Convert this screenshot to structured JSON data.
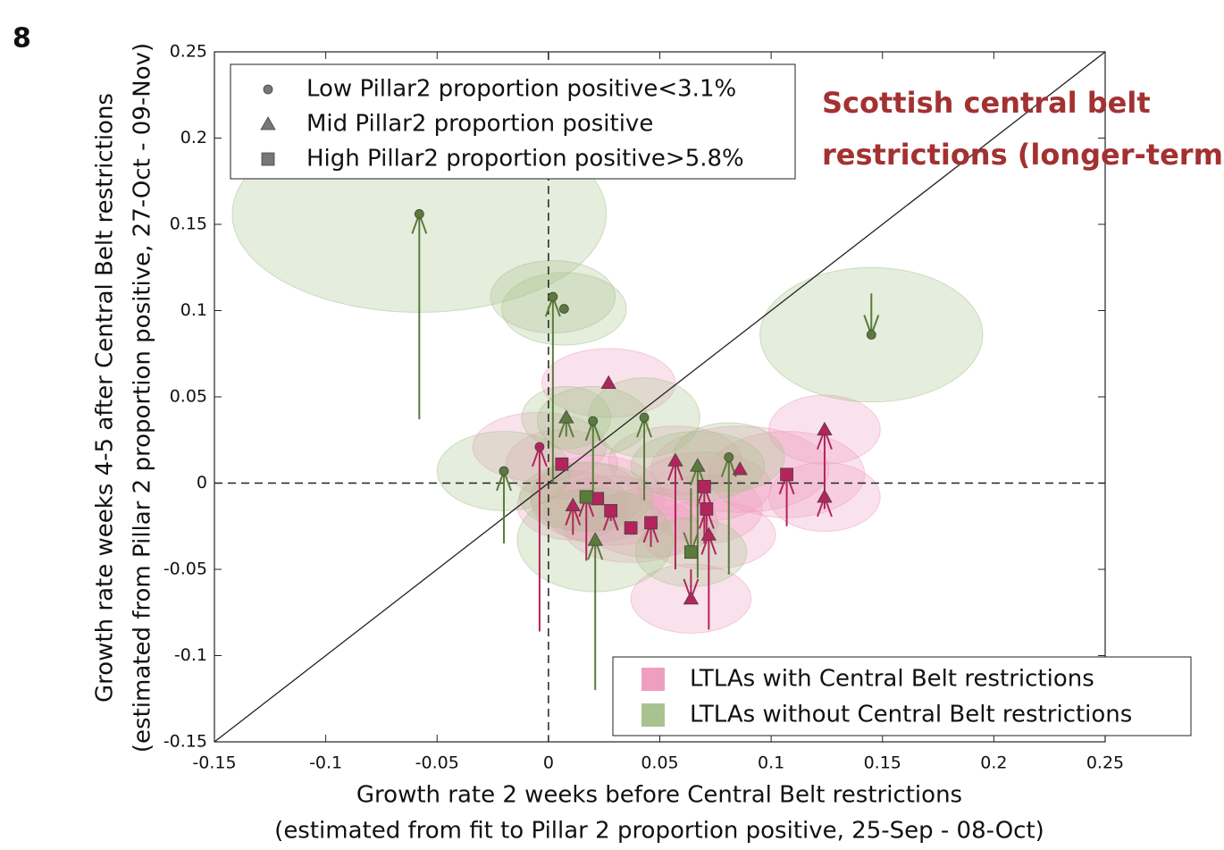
{
  "panel_label": "8",
  "chart_data": {
    "type": "scatter",
    "annotation": [
      "Scottish central belt",
      "restrictions (longer-term)"
    ],
    "x_label": [
      "Growth rate 2 weeks before Central Belt restrictions",
      "(estimated from fit to Pillar 2 proportion positive, 25-Sep - 08-Oct)"
    ],
    "y_label": [
      "Growth rate weeks 4-5 after Central Belt restrictions",
      "(estimated from Pillar 2 proportion positive, 27-Oct - 09-Nov)"
    ],
    "xlim": [
      -0.15,
      0.25
    ],
    "ylim": [
      -0.15,
      0.25
    ],
    "xticks": [
      -0.15,
      -0.1,
      -0.05,
      0,
      0.05,
      0.1,
      0.15,
      0.2,
      0.25
    ],
    "yticks": [
      -0.15,
      -0.1,
      -0.05,
      0,
      0.05,
      0.1,
      0.15,
      0.2,
      0.25
    ],
    "identity_line": true,
    "zero_lines": true,
    "markers": [
      {
        "name": "Low Pillar2 proportion positive<3.1%",
        "shape": "circle"
      },
      {
        "name": "Mid Pillar2 proportion positive",
        "shape": "triangle"
      },
      {
        "name": "High Pillar2 proportion positive>5.8%",
        "shape": "square"
      }
    ],
    "series": [
      {
        "name": "LTLAs with Central Belt restrictions",
        "color": "#b3245c",
        "ellipse_color": "#ee9fbf",
        "marker": [
          "circle",
          "triangle",
          "square",
          "square",
          "square",
          "triangle",
          "square",
          "square",
          "square",
          "triangle",
          "square",
          "square",
          "triangle",
          "triangle",
          "square",
          "triangle",
          "triangle",
          "triangle"
        ],
        "x": [
          -0.004,
          0.027,
          0.006,
          0.017,
          0.022,
          0.011,
          0.028,
          0.037,
          0.046,
          0.057,
          0.07,
          0.071,
          0.072,
          0.086,
          0.107,
          0.124,
          0.124,
          0.064
        ],
        "values": [
          0.021,
          0.058,
          0.011,
          -0.008,
          -0.009,
          -0.013,
          -0.016,
          -0.026,
          -0.023,
          0.013,
          -0.002,
          -0.015,
          -0.03,
          0.008,
          0.005,
          0.031,
          -0.008,
          -0.067
        ],
        "arrow_from": [
          -0.086,
          null,
          null,
          -0.045,
          null,
          -0.03,
          -0.022,
          null,
          -0.037,
          -0.05,
          -0.035,
          -0.03,
          -0.085,
          null,
          -0.025,
          -0.015,
          -0.015,
          -0.05
        ],
        "x_err": [
          0.03,
          0.03,
          0.025,
          0.025,
          0.03,
          0.025,
          0.03,
          0.03,
          0.03,
          0.03,
          0.03,
          0.025,
          0.03,
          0.04,
          0.035,
          0.025,
          0.025,
          0.027
        ],
        "y_err": [
          0.02,
          0.02,
          0.02,
          0.02,
          0.025,
          0.02,
          0.02,
          0.02,
          0.02,
          0.02,
          0.02,
          0.02,
          0.02,
          0.025,
          0.025,
          0.02,
          0.02,
          0.02
        ]
      },
      {
        "name": "LTLAs without Central Belt restrictions",
        "color": "#5a7b3a",
        "ellipse_color": "#a9c28f",
        "marker": [
          "circle",
          "circle",
          "circle",
          "circle",
          "triangle",
          "circle",
          "circle",
          "circle",
          "triangle",
          "circle",
          "square",
          "triangle",
          "square"
        ],
        "x": [
          -0.058,
          0.002,
          0.007,
          0.145,
          0.008,
          0.02,
          0.043,
          -0.02,
          0.067,
          0.081,
          0.017,
          0.021,
          0.064
        ],
        "values": [
          0.156,
          0.108,
          0.101,
          0.086,
          0.038,
          0.036,
          0.038,
          0.007,
          0.01,
          0.015,
          -0.008,
          -0.033,
          -0.04
        ],
        "arrow_from": [
          0.037,
          0.0,
          null,
          0.11,
          0.027,
          -0.005,
          -0.01,
          -0.035,
          -0.055,
          -0.053,
          null,
          -0.12,
          -0.003
        ],
        "x_err": [
          0.084,
          0.028,
          0.028,
          0.05,
          0.02,
          0.025,
          0.025,
          0.03,
          0.03,
          0.025,
          0.03,
          0.035,
          0.025
        ],
        "y_err": [
          0.057,
          0.021,
          0.021,
          0.039,
          0.018,
          0.02,
          0.023,
          0.023,
          0.02,
          0.02,
          0.02,
          0.03,
          0.02
        ]
      }
    ]
  }
}
